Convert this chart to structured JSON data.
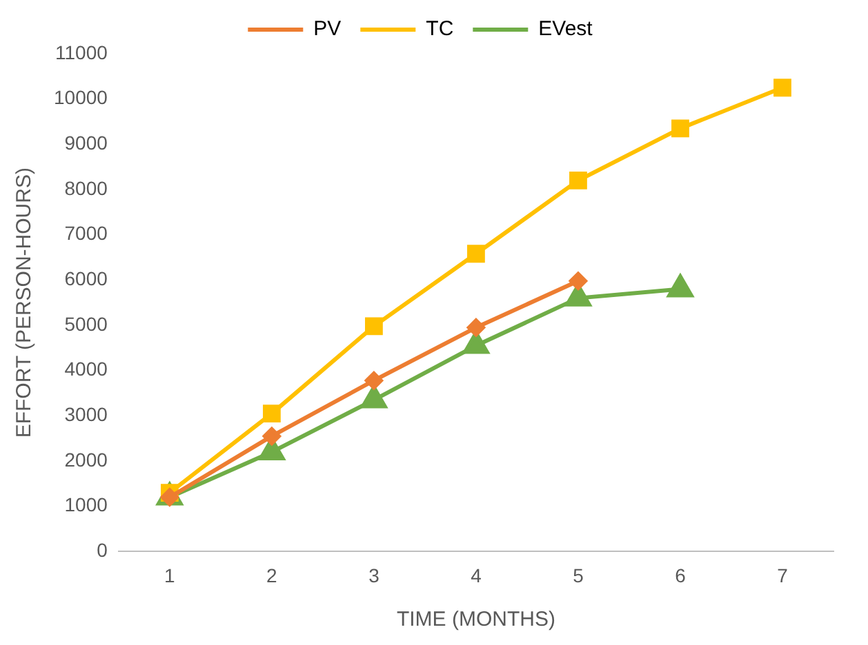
{
  "chart_data": {
    "type": "line",
    "xlabel": "TIME (MONTHS)",
    "ylabel": "EFFORT (PERSON-HOURS)",
    "categories": [
      "1",
      "2",
      "3",
      "4",
      "5",
      "6",
      "7"
    ],
    "series": [
      {
        "name": "PV",
        "color": "#ed7d31",
        "marker": "diamond",
        "values": [
          1200,
          2550,
          3780,
          4950,
          5980,
          null,
          null
        ]
      },
      {
        "name": "TC",
        "color": "#ffc000",
        "marker": "square",
        "values": [
          1300,
          3050,
          4980,
          6580,
          8200,
          9350,
          10250
        ]
      },
      {
        "name": "EVest",
        "color": "#70ad47",
        "marker": "triangle",
        "values": [
          1200,
          2200,
          3350,
          4550,
          5600,
          5800,
          null
        ]
      }
    ],
    "ylim": [
      0,
      11000
    ],
    "yticks": [
      0,
      1000,
      2000,
      3000,
      4000,
      5000,
      6000,
      7000,
      8000,
      9000,
      10000,
      11000
    ],
    "grid": false,
    "legend": "top",
    "line_style": "solid"
  }
}
